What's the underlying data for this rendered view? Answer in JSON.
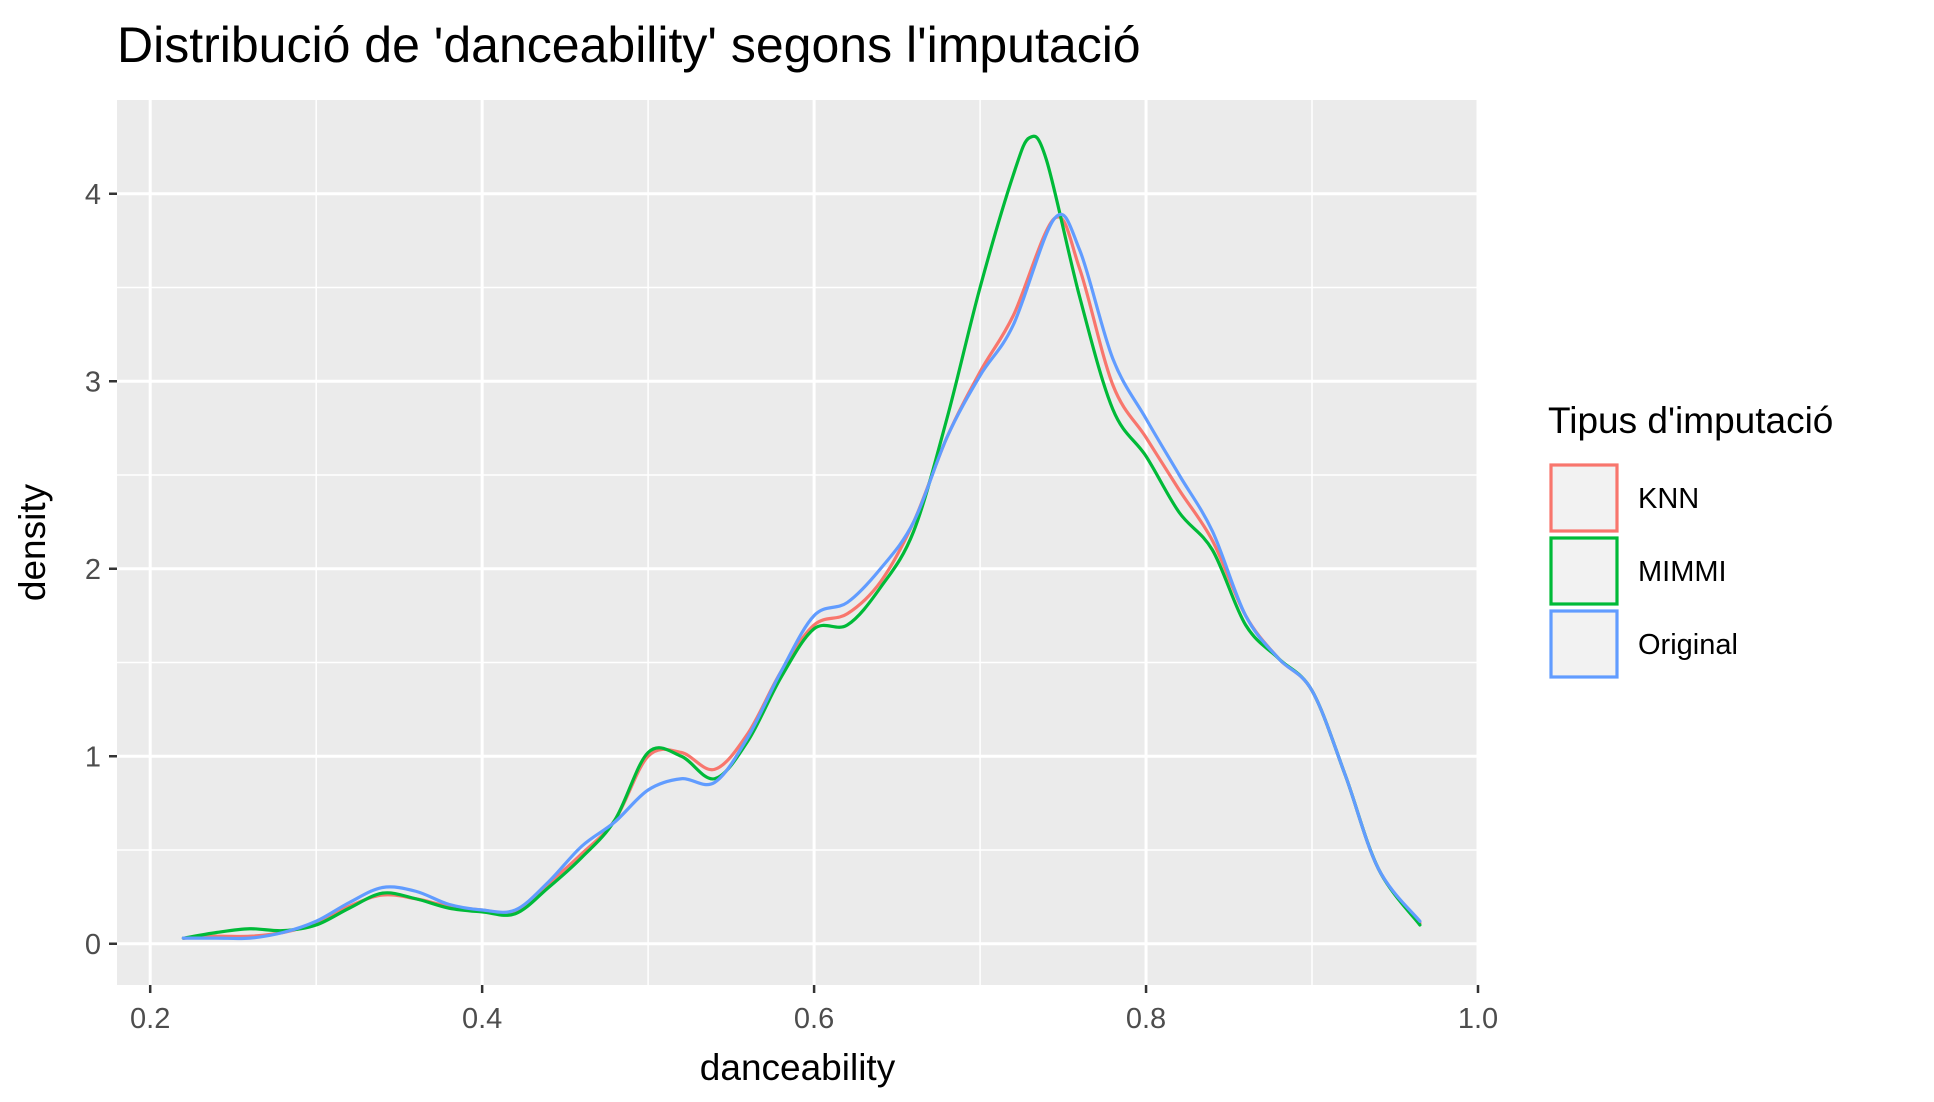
{
  "chart_data": {
    "type": "line",
    "title": "Distribució de 'danceability' segons l'imputació",
    "xlabel": "danceability",
    "ylabel": "density",
    "xlim": [
      0.18,
      1.0
    ],
    "ylim": [
      -0.22,
      4.5
    ],
    "x_ticks": [
      0.2,
      0.4,
      0.6,
      0.8,
      1.0
    ],
    "x_tick_labels": [
      "0.2",
      "0.4",
      "0.6",
      "0.8",
      "1.0"
    ],
    "y_ticks": [
      0,
      1,
      2,
      3,
      4
    ],
    "y_tick_labels": [
      "0",
      "1",
      "2",
      "3",
      "4"
    ],
    "grid": true,
    "legend_title": "Tipus d'imputació",
    "legend_position": "right",
    "series": [
      {
        "name": "KNN",
        "color": "#F8766D",
        "points": [
          [
            0.22,
            0.03
          ],
          [
            0.24,
            0.04
          ],
          [
            0.26,
            0.04
          ],
          [
            0.28,
            0.06
          ],
          [
            0.3,
            0.11
          ],
          [
            0.32,
            0.2
          ],
          [
            0.34,
            0.26
          ],
          [
            0.36,
            0.24
          ],
          [
            0.38,
            0.2
          ],
          [
            0.4,
            0.18
          ],
          [
            0.42,
            0.17
          ],
          [
            0.44,
            0.32
          ],
          [
            0.46,
            0.48
          ],
          [
            0.48,
            0.66
          ],
          [
            0.5,
            1.0
          ],
          [
            0.52,
            1.02
          ],
          [
            0.54,
            0.93
          ],
          [
            0.56,
            1.12
          ],
          [
            0.58,
            1.45
          ],
          [
            0.6,
            1.7
          ],
          [
            0.62,
            1.76
          ],
          [
            0.64,
            1.93
          ],
          [
            0.66,
            2.25
          ],
          [
            0.68,
            2.7
          ],
          [
            0.7,
            3.05
          ],
          [
            0.72,
            3.35
          ],
          [
            0.745,
            3.87
          ],
          [
            0.76,
            3.6
          ],
          [
            0.78,
            2.98
          ],
          [
            0.8,
            2.7
          ],
          [
            0.82,
            2.42
          ],
          [
            0.84,
            2.15
          ],
          [
            0.86,
            1.75
          ],
          [
            0.88,
            1.52
          ],
          [
            0.9,
            1.35
          ],
          [
            0.92,
            0.9
          ],
          [
            0.94,
            0.4
          ],
          [
            0.965,
            0.11
          ]
        ]
      },
      {
        "name": "MIMMI",
        "color": "#00BA38",
        "points": [
          [
            0.22,
            0.03
          ],
          [
            0.24,
            0.06
          ],
          [
            0.26,
            0.08
          ],
          [
            0.28,
            0.07
          ],
          [
            0.3,
            0.1
          ],
          [
            0.32,
            0.19
          ],
          [
            0.34,
            0.27
          ],
          [
            0.36,
            0.24
          ],
          [
            0.38,
            0.19
          ],
          [
            0.4,
            0.17
          ],
          [
            0.42,
            0.16
          ],
          [
            0.44,
            0.3
          ],
          [
            0.46,
            0.46
          ],
          [
            0.48,
            0.66
          ],
          [
            0.5,
            1.02
          ],
          [
            0.52,
            1.0
          ],
          [
            0.54,
            0.88
          ],
          [
            0.56,
            1.08
          ],
          [
            0.58,
            1.42
          ],
          [
            0.6,
            1.68
          ],
          [
            0.62,
            1.7
          ],
          [
            0.64,
            1.9
          ],
          [
            0.66,
            2.2
          ],
          [
            0.68,
            2.8
          ],
          [
            0.7,
            3.5
          ],
          [
            0.72,
            4.1
          ],
          [
            0.73,
            4.3
          ],
          [
            0.74,
            4.18
          ],
          [
            0.76,
            3.45
          ],
          [
            0.78,
            2.85
          ],
          [
            0.8,
            2.6
          ],
          [
            0.82,
            2.3
          ],
          [
            0.84,
            2.1
          ],
          [
            0.86,
            1.7
          ],
          [
            0.88,
            1.52
          ],
          [
            0.9,
            1.35
          ],
          [
            0.92,
            0.9
          ],
          [
            0.94,
            0.4
          ],
          [
            0.965,
            0.1
          ]
        ]
      },
      {
        "name": "Original",
        "color": "#619CFF",
        "points": [
          [
            0.22,
            0.03
          ],
          [
            0.24,
            0.03
          ],
          [
            0.26,
            0.03
          ],
          [
            0.28,
            0.06
          ],
          [
            0.3,
            0.12
          ],
          [
            0.32,
            0.22
          ],
          [
            0.34,
            0.3
          ],
          [
            0.36,
            0.28
          ],
          [
            0.38,
            0.21
          ],
          [
            0.4,
            0.18
          ],
          [
            0.42,
            0.18
          ],
          [
            0.44,
            0.33
          ],
          [
            0.46,
            0.52
          ],
          [
            0.48,
            0.65
          ],
          [
            0.5,
            0.82
          ],
          [
            0.52,
            0.88
          ],
          [
            0.54,
            0.86
          ],
          [
            0.56,
            1.1
          ],
          [
            0.58,
            1.45
          ],
          [
            0.6,
            1.75
          ],
          [
            0.62,
            1.82
          ],
          [
            0.64,
            2.0
          ],
          [
            0.66,
            2.25
          ],
          [
            0.68,
            2.7
          ],
          [
            0.7,
            3.03
          ],
          [
            0.72,
            3.3
          ],
          [
            0.745,
            3.87
          ],
          [
            0.76,
            3.7
          ],
          [
            0.78,
            3.12
          ],
          [
            0.8,
            2.8
          ],
          [
            0.82,
            2.5
          ],
          [
            0.84,
            2.2
          ],
          [
            0.86,
            1.75
          ],
          [
            0.88,
            1.52
          ],
          [
            0.9,
            1.35
          ],
          [
            0.92,
            0.9
          ],
          [
            0.94,
            0.4
          ],
          [
            0.965,
            0.12
          ]
        ]
      }
    ]
  }
}
